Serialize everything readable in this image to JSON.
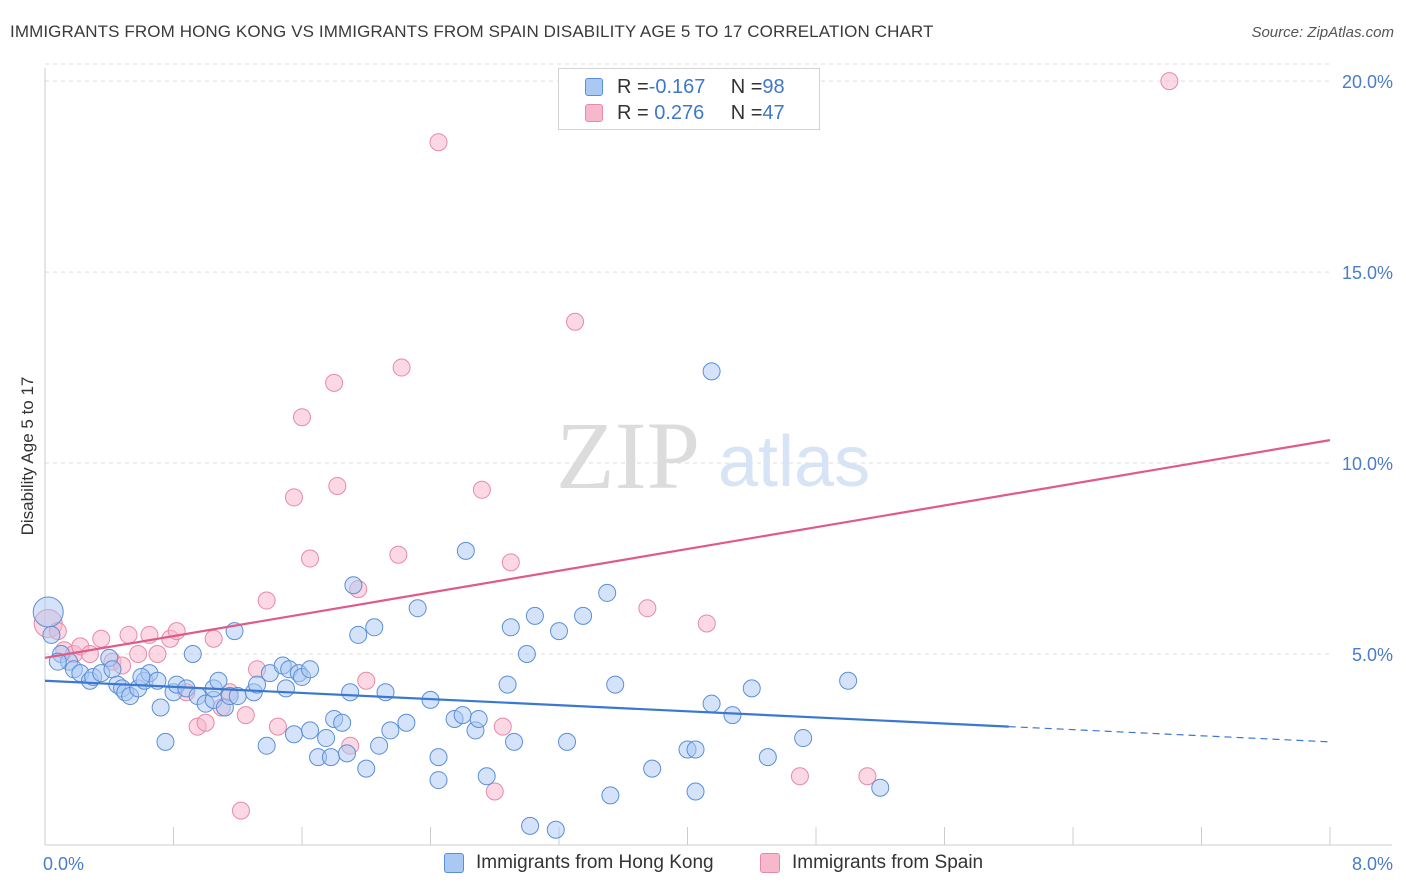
{
  "header": {
    "title": "IMMIGRANTS FROM HONG KONG VS IMMIGRANTS FROM SPAIN DISABILITY AGE 5 TO 17 CORRELATION CHART",
    "source": "Source: ZipAtlas.com"
  },
  "watermark": {
    "zip": "ZIP",
    "atlas": "atlas"
  },
  "legend": {
    "hk": {
      "r_label": "R = ",
      "r_value": "-0.167",
      "n_label": "N = ",
      "n_value": "98"
    },
    "es": {
      "r_label": "R = ",
      "r_value": " 0.276",
      "n_label": "N = ",
      "n_value": "47"
    }
  },
  "colors": {
    "hk_fill": "#a9c8f3",
    "hk_stroke": "#5b8fd6",
    "hk_line": "#3b78d0",
    "es_fill": "#f7b8cc",
    "es_stroke": "#e68aa8",
    "es_line": "#e05a88",
    "grid": "#dddddd",
    "tick_text": "#4a7cc9"
  },
  "chart_data": {
    "type": "scatter",
    "ylabel": "Disability Age 5 to 17",
    "xlim": [
      0,
      8
    ],
    "ylim": [
      0,
      20.5
    ],
    "x_ticks": [
      0,
      0.8,
      1.6,
      2.4,
      3.2,
      4.0,
      4.8,
      5.6,
      6.4,
      7.2,
      8.0
    ],
    "x_tick_labels": {
      "first": "0.0%",
      "last": "8.0%"
    },
    "y_ticks": [
      5,
      10,
      15,
      20
    ],
    "y_tick_labels": [
      "5.0%",
      "10.0%",
      "15.0%",
      "20.0%"
    ],
    "grid": "horizontal dashed",
    "legend_position": "top-center",
    "series": [
      {
        "name": "Immigrants from Hong Kong",
        "trend": {
          "x": [
            0,
            6.0
          ],
          "y": [
            4.3,
            3.1
          ],
          "dashed_extension": {
            "x": [
              6.0,
              8.0
            ],
            "y": [
              3.1,
              2.7
            ]
          }
        },
        "points": [
          [
            0.02,
            6.1
          ],
          [
            0.04,
            5.5
          ],
          [
            0.1,
            5.0
          ],
          [
            0.15,
            4.8
          ],
          [
            0.18,
            4.6
          ],
          [
            0.22,
            4.5
          ],
          [
            0.28,
            4.3
          ],
          [
            0.3,
            4.4
          ],
          [
            0.35,
            4.5
          ],
          [
            0.4,
            4.9
          ],
          [
            0.42,
            4.6
          ],
          [
            0.45,
            4.2
          ],
          [
            0.48,
            4.1
          ],
          [
            0.5,
            4.0
          ],
          [
            0.53,
            3.9
          ],
          [
            0.58,
            4.1
          ],
          [
            0.62,
            4.3
          ],
          [
            0.65,
            4.5
          ],
          [
            0.7,
            4.3
          ],
          [
            0.72,
            3.6
          ],
          [
            0.75,
            2.7
          ],
          [
            0.8,
            4.0
          ],
          [
            0.82,
            4.2
          ],
          [
            0.88,
            4.1
          ],
          [
            0.92,
            5.0
          ],
          [
            0.95,
            3.9
          ],
          [
            1.0,
            3.7
          ],
          [
            1.05,
            3.8
          ],
          [
            1.05,
            4.1
          ],
          [
            1.08,
            4.3
          ],
          [
            1.12,
            3.6
          ],
          [
            1.15,
            3.9
          ],
          [
            1.18,
            5.6
          ],
          [
            1.2,
            3.9
          ],
          [
            1.3,
            4.0
          ],
          [
            1.32,
            4.2
          ],
          [
            1.38,
            2.6
          ],
          [
            1.4,
            4.5
          ],
          [
            1.48,
            4.7
          ],
          [
            1.5,
            4.1
          ],
          [
            1.52,
            4.6
          ],
          [
            1.55,
            2.9
          ],
          [
            1.58,
            4.5
          ],
          [
            1.6,
            4.4
          ],
          [
            1.65,
            3.0
          ],
          [
            1.7,
            2.3
          ],
          [
            1.75,
            2.8
          ],
          [
            1.78,
            2.3
          ],
          [
            1.8,
            3.3
          ],
          [
            1.85,
            3.2
          ],
          [
            1.88,
            2.4
          ],
          [
            1.9,
            4.0
          ],
          [
            1.92,
            6.8
          ],
          [
            1.95,
            5.5
          ],
          [
            2.0,
            2.0
          ],
          [
            2.05,
            5.7
          ],
          [
            2.08,
            2.6
          ],
          [
            2.12,
            4.0
          ],
          [
            2.15,
            3.0
          ],
          [
            2.25,
            3.2
          ],
          [
            2.32,
            6.2
          ],
          [
            2.4,
            3.8
          ],
          [
            2.45,
            2.3
          ],
          [
            2.45,
            1.7
          ],
          [
            2.55,
            3.3
          ],
          [
            2.6,
            3.4
          ],
          [
            2.62,
            7.7
          ],
          [
            2.68,
            3.0
          ],
          [
            2.7,
            3.3
          ],
          [
            2.75,
            1.8
          ],
          [
            2.88,
            4.2
          ],
          [
            2.9,
            5.7
          ],
          [
            2.92,
            2.7
          ],
          [
            3.0,
            5.0
          ],
          [
            3.02,
            0.5
          ],
          [
            3.05,
            6.0
          ],
          [
            3.18,
            0.4
          ],
          [
            3.2,
            5.6
          ],
          [
            3.25,
            2.7
          ],
          [
            3.35,
            6.0
          ],
          [
            3.5,
            6.6
          ],
          [
            3.52,
            1.3
          ],
          [
            3.55,
            4.2
          ],
          [
            3.78,
            2.0
          ],
          [
            4.0,
            2.5
          ],
          [
            4.05,
            2.5
          ],
          [
            4.05,
            1.4
          ],
          [
            4.15,
            12.4
          ],
          [
            4.15,
            3.7
          ],
          [
            4.28,
            3.4
          ],
          [
            4.4,
            4.1
          ],
          [
            4.5,
            2.3
          ],
          [
            4.72,
            2.8
          ],
          [
            5.0,
            4.3
          ],
          [
            5.2,
            1.5
          ],
          [
            0.08,
            4.8
          ],
          [
            1.65,
            4.6
          ],
          [
            0.6,
            4.4
          ]
        ]
      },
      {
        "name": "Immigrants from Spain",
        "trend": {
          "x": [
            0,
            8.0
          ],
          "y": [
            4.9,
            10.6
          ]
        },
        "points": [
          [
            0.02,
            5.8
          ],
          [
            0.08,
            5.6
          ],
          [
            0.12,
            5.1
          ],
          [
            0.18,
            5.0
          ],
          [
            0.22,
            5.2
          ],
          [
            0.28,
            5.0
          ],
          [
            0.35,
            5.4
          ],
          [
            0.42,
            4.8
          ],
          [
            0.48,
            4.7
          ],
          [
            0.52,
            5.5
          ],
          [
            0.58,
            5.0
          ],
          [
            0.65,
            5.5
          ],
          [
            0.7,
            5.0
          ],
          [
            0.78,
            5.4
          ],
          [
            0.82,
            5.6
          ],
          [
            0.88,
            4.0
          ],
          [
            0.95,
            3.1
          ],
          [
            1.0,
            3.2
          ],
          [
            1.05,
            5.4
          ],
          [
            1.1,
            3.6
          ],
          [
            1.15,
            4.0
          ],
          [
            1.22,
            0.9
          ],
          [
            1.25,
            3.4
          ],
          [
            1.32,
            4.6
          ],
          [
            1.38,
            6.4
          ],
          [
            1.45,
            3.1
          ],
          [
            1.55,
            9.1
          ],
          [
            1.6,
            11.2
          ],
          [
            1.65,
            7.5
          ],
          [
            1.8,
            12.1
          ],
          [
            1.82,
            9.4
          ],
          [
            1.9,
            2.6
          ],
          [
            1.95,
            6.7
          ],
          [
            2.0,
            4.3
          ],
          [
            2.2,
            7.6
          ],
          [
            2.22,
            12.5
          ],
          [
            2.45,
            18.4
          ],
          [
            2.72,
            9.3
          ],
          [
            2.8,
            1.4
          ],
          [
            2.85,
            3.1
          ],
          [
            2.9,
            7.4
          ],
          [
            3.3,
            13.7
          ],
          [
            3.75,
            6.2
          ],
          [
            4.12,
            5.8
          ],
          [
            4.7,
            1.8
          ],
          [
            5.12,
            1.8
          ],
          [
            7.0,
            20.0
          ]
        ]
      }
    ]
  },
  "bottom_legend": {
    "hk_label": "Immigrants from Hong Kong",
    "es_label": "Immigrants from Spain"
  }
}
